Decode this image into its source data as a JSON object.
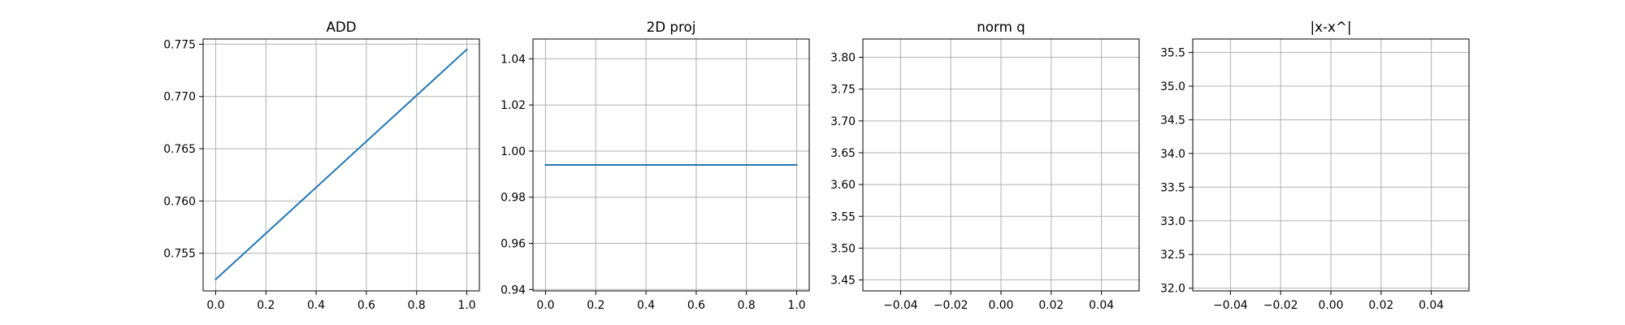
{
  "chart_data": [
    {
      "type": "line",
      "title": "ADD",
      "xlabel": "",
      "ylabel": "",
      "xlim": [
        -0.05,
        1.05
      ],
      "ylim": [
        0.7514,
        0.7755
      ],
      "xticks": [
        0.0,
        0.2,
        0.4,
        0.6,
        0.8,
        1.0
      ],
      "xtick_labels": [
        "0.0",
        "0.2",
        "0.4",
        "0.6",
        "0.8",
        "1.0"
      ],
      "yticks": [
        0.755,
        0.76,
        0.765,
        0.77,
        0.775
      ],
      "ytick_labels": [
        "0.755",
        "0.760",
        "0.765",
        "0.770",
        "0.775"
      ],
      "grid": true,
      "series": [
        {
          "color": "#1f77b4",
          "x": [
            0.0,
            1.0
          ],
          "y": [
            0.7525,
            0.7745
          ]
        }
      ]
    },
    {
      "type": "line",
      "title": "2D proj",
      "xlabel": "",
      "ylabel": "",
      "xlim": [
        -0.05,
        1.05
      ],
      "ylim": [
        0.9394,
        1.0486
      ],
      "xticks": [
        0.0,
        0.2,
        0.4,
        0.6,
        0.8,
        1.0
      ],
      "xtick_labels": [
        "0.0",
        "0.2",
        "0.4",
        "0.6",
        "0.8",
        "1.0"
      ],
      "yticks": [
        0.94,
        0.96,
        0.98,
        1.0,
        1.02,
        1.04
      ],
      "ytick_labels": [
        "0.94",
        "0.96",
        "0.98",
        "1.00",
        "1.02",
        "1.04"
      ],
      "grid": true,
      "series": [
        {
          "color": "#1f77b4",
          "x": [
            0.0,
            1.0
          ],
          "y": [
            0.994,
            0.994
          ]
        }
      ]
    },
    {
      "type": "line",
      "title": "norm q",
      "xlabel": "",
      "ylabel": "",
      "xlim": [
        -0.055,
        0.055
      ],
      "ylim": [
        3.4328,
        3.8288
      ],
      "xticks": [
        -0.04,
        -0.02,
        0.0,
        0.02,
        0.04
      ],
      "xtick_labels": [
        "−0.04",
        "−0.02",
        "0.00",
        "0.02",
        "0.04"
      ],
      "yticks": [
        3.45,
        3.5,
        3.55,
        3.6,
        3.65,
        3.7,
        3.75,
        3.8
      ],
      "ytick_labels": [
        "3.45",
        "3.50",
        "3.55",
        "3.60",
        "3.65",
        "3.70",
        "3.75",
        "3.80"
      ],
      "grid": true,
      "series": []
    },
    {
      "type": "line",
      "title": "|x-x^|",
      "xlabel": "",
      "ylabel": "",
      "xlim": [
        -0.055,
        0.055
      ],
      "ylim": [
        31.96,
        35.7
      ],
      "xticks": [
        -0.04,
        -0.02,
        0.0,
        0.02,
        0.04
      ],
      "xtick_labels": [
        "−0.04",
        "−0.02",
        "0.00",
        "0.02",
        "0.04"
      ],
      "yticks": [
        32.0,
        32.5,
        33.0,
        33.5,
        34.0,
        34.5,
        35.0,
        35.5
      ],
      "ytick_labels": [
        "32.0",
        "32.5",
        "33.0",
        "33.5",
        "34.0",
        "34.5",
        "35.0",
        "35.5"
      ],
      "grid": true,
      "series": []
    }
  ]
}
